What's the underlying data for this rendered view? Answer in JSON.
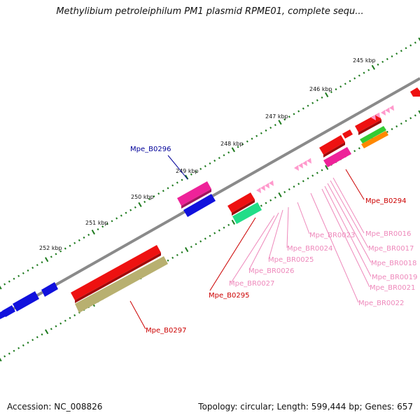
{
  "title": "Methylibium petroleiphilum PM1 plasmid RPME01, complete sequ...",
  "footer": {
    "accession": "Accession: NC_008826",
    "summary": "Topology: circular; Length: 599,444 bp; Genes: 657"
  },
  "colors": {
    "backbone": "#8a8a8a",
    "ticks": "#1d7a1d",
    "cds_red": "#ee1111",
    "cds_blue": "#1111dd",
    "cds_magenta": "#ee2299",
    "cds_green": "#22dd88",
    "cds_lime": "#33cc33",
    "cds_orange": "#ff8800",
    "cds_olive": "#b8b070",
    "repeat_pink": "#ff99cc",
    "label_red": "#cc0000",
    "label_blue": "#000099",
    "label_pink": "#ee88bb"
  },
  "scale_labels": [
    "245 kbp",
    "246 kbp",
    "247 kbp",
    "248 kbp",
    "249 kbp",
    "250 kbp",
    "251 kbp",
    "252 kbp"
  ],
  "gene_labels": {
    "Mpe_B0294": "Mpe_B0294",
    "Mpe_B0295": "Mpe_B0295",
    "Mpe_B0296": "Mpe_B0296",
    "Mpe_B0297": "Mpe_B0297",
    "Mpe_BR0016": "Mpe_BR0016",
    "Mpe_BR0017": "Mpe_BR0017",
    "Mpe_BR0018": "Mpe_BR0018",
    "Mpe_BR0019": "Mpe_BR0019",
    "Mpe_BR0021": "Mpe_BR0021",
    "Mpe_BR0022": "Mpe_BR0022",
    "Mpe_BR0023": "Mpe_BR0023",
    "Mpe_BR0024": "Mpe_BR0024",
    "Mpe_BR0025": "Mpe_BR0025",
    "Mpe_BR0026": "Mpe_BR0026",
    "Mpe_BR0027": "Mpe_BR0027"
  }
}
